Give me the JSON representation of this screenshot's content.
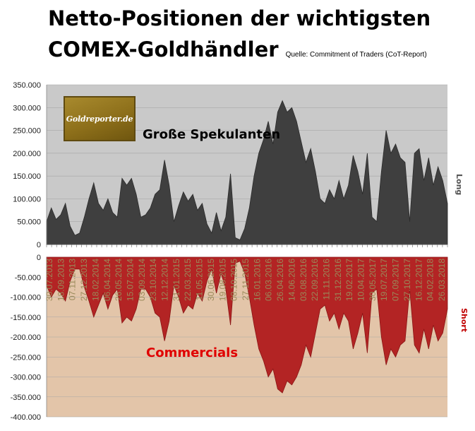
{
  "title_line1": "Netto-Positionen der wichtigsten",
  "title_line2": "COMEX-Goldhändler",
  "source": "Quelle: Commitment of Traders (CoT-Report)",
  "logo_text": "Goldreporter.de",
  "colors": {
    "spec_fill": "#3f3f3f",
    "spec_bg": "#c9c9c9",
    "comm_fill": "#b32424",
    "comm_bg": "#e3c5a9"
  },
  "chart_data": [
    {
      "type": "area",
      "title": "Große Spekulanten",
      "side_label": "Long",
      "y_ticks": [
        "350.000",
        "300.000",
        "250.000",
        "200.000",
        "150.000",
        "100.000",
        "50.000",
        "0"
      ],
      "ylim": [
        0,
        350000
      ],
      "values": [
        50000,
        80000,
        55000,
        65000,
        90000,
        40000,
        20000,
        25000,
        60000,
        100000,
        135000,
        90000,
        75000,
        100000,
        70000,
        60000,
        145000,
        130000,
        145000,
        110000,
        60000,
        65000,
        80000,
        110000,
        120000,
        185000,
        130000,
        50000,
        85000,
        115000,
        95000,
        110000,
        75000,
        90000,
        45000,
        25000,
        70000,
        30000,
        60000,
        155000,
        15000,
        10000,
        35000,
        80000,
        150000,
        200000,
        230000,
        270000,
        220000,
        290000,
        315000,
        290000,
        300000,
        270000,
        225000,
        180000,
        210000,
        160000,
        100000,
        90000,
        120000,
        100000,
        140000,
        100000,
        130000,
        195000,
        160000,
        110000,
        200000,
        60000,
        50000,
        160000,
        250000,
        200000,
        220000,
        190000,
        180000,
        50000,
        200000,
        210000,
        140000,
        190000,
        130000,
        170000,
        140000,
        90000
      ]
    },
    {
      "type": "area",
      "title": "Commercials",
      "side_label": "Short",
      "y_ticks": [
        "0",
        "-50.000",
        "-100.000",
        "-150.000",
        "-200.000",
        "-250.000",
        "-300.000",
        "-350.000",
        "-400.000"
      ],
      "ylim": [
        -400000,
        0
      ],
      "x_tick_labels": [
        "30.07.2013",
        "18.09.2013",
        "07.11.2013",
        "27.12.2013",
        "18.02.2014",
        "06.04.2014",
        "26.05.2014",
        "15.07.2014",
        "03.09.2014",
        "23.10.2014",
        "12.12.2014",
        "31.01.2015",
        "22.03.2015",
        "11.05.2015",
        "30.06.2015",
        "19.08.2015",
        "08.10.2015",
        "27.11.2015",
        "16.01.2016",
        "06.03.2016",
        "26.04.2016",
        "14.06.2016",
        "03.08.2016",
        "22.09.2016",
        "11.11.2016",
        "31.12.2016",
        "19.02.2017",
        "10.04.2017",
        "30.05.2017",
        "19.07.2017",
        "07.09.2017",
        "27.10.2017",
        "16.12.2017",
        "04.02.2018",
        "26.03.2018"
      ],
      "values": [
        -70000,
        -100000,
        -80000,
        -90000,
        -110000,
        -60000,
        -30000,
        -30000,
        -75000,
        -110000,
        -150000,
        -120000,
        -90000,
        -130000,
        -95000,
        -80000,
        -165000,
        -150000,
        -160000,
        -130000,
        -80000,
        -80000,
        -100000,
        -140000,
        -150000,
        -210000,
        -160000,
        -70000,
        -100000,
        -140000,
        -120000,
        -130000,
        -90000,
        -110000,
        -60000,
        -30000,
        -90000,
        -40000,
        -80000,
        -170000,
        -15000,
        -10000,
        -40000,
        -100000,
        -170000,
        -230000,
        -260000,
        -300000,
        -280000,
        -330000,
        -340000,
        -310000,
        -320000,
        -300000,
        -270000,
        -220000,
        -250000,
        -190000,
        -130000,
        -120000,
        -160000,
        -140000,
        -180000,
        -140000,
        -160000,
        -230000,
        -190000,
        -140000,
        -240000,
        -90000,
        -80000,
        -200000,
        -270000,
        -230000,
        -250000,
        -220000,
        -210000,
        -80000,
        -220000,
        -240000,
        -180000,
        -230000,
        -170000,
        -210000,
        -190000,
        -130000
      ]
    }
  ]
}
